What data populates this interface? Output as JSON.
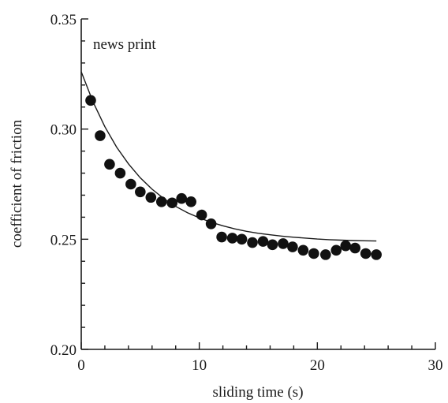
{
  "chart_data": {
    "type": "scatter",
    "title": "",
    "annotation": "news print",
    "xlabel": "sliding time (s)",
    "ylabel": "coefficient of friction",
    "xlim": [
      0,
      30
    ],
    "ylim": [
      0.2,
      0.35
    ],
    "x_major_ticks": [
      0,
      10,
      20,
      30
    ],
    "x_tick_labels": [
      "0",
      "10",
      "20",
      "30"
    ],
    "y_major_ticks": [
      0.2,
      0.25,
      0.3,
      0.35
    ],
    "y_tick_labels": [
      "0.20",
      "0.25",
      "0.30",
      "0.35"
    ],
    "grid": false,
    "legend": "none",
    "series": [
      {
        "type": "scatter",
        "x": [
          0.8,
          1.6,
          2.4,
          3.3,
          4.2,
          5.0,
          5.9,
          6.8,
          7.7,
          8.5,
          9.3,
          10.2,
          11.0,
          11.9,
          12.8,
          13.6,
          14.5,
          15.4,
          16.2,
          17.1,
          17.9,
          18.8,
          19.7,
          20.7,
          21.6,
          22.4,
          23.2,
          24.1,
          25.0
        ],
        "y": [
          0.313,
          0.297,
          0.284,
          0.28,
          0.275,
          0.2715,
          0.269,
          0.267,
          0.2665,
          0.2685,
          0.267,
          0.261,
          0.257,
          0.251,
          0.2505,
          0.25,
          0.2485,
          0.249,
          0.2475,
          0.248,
          0.2465,
          0.245,
          0.2435,
          0.243,
          0.245,
          0.247,
          0.246,
          0.2435,
          0.243
        ]
      },
      {
        "type": "line",
        "fit": "exponential decay",
        "x": [
          0,
          1,
          2,
          3,
          4,
          5,
          6,
          7,
          8,
          9,
          10,
          11,
          12,
          13,
          14,
          15,
          16,
          17,
          18,
          19,
          20,
          21,
          22,
          23,
          24,
          25
        ],
        "y": [
          0.326,
          0.3123,
          0.3011,
          0.2918,
          0.2842,
          0.2779,
          0.2727,
          0.2684,
          0.2649,
          0.262,
          0.2597,
          0.2577,
          0.2561,
          0.2547,
          0.2536,
          0.2527,
          0.252,
          0.2514,
          0.2509,
          0.2505,
          0.2501,
          0.2498,
          0.2496,
          0.2494,
          0.2493,
          0.2492
        ]
      }
    ]
  },
  "colors": {
    "axis": "#1a1a1a",
    "markers": "#111111",
    "fit_line": "#1a1a1a",
    "background": "#ffffff"
  }
}
